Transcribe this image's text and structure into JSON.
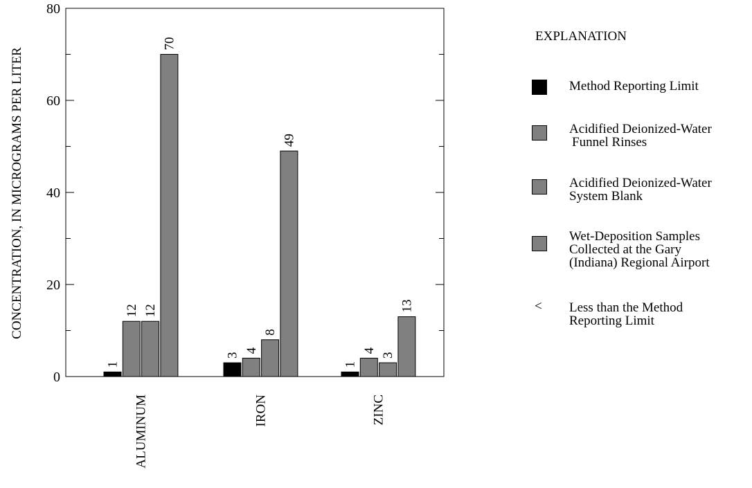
{
  "chart_data": {
    "type": "bar",
    "ylabel": "CONCENTRATION, IN MICROGRAMS PER LITER",
    "xlabel": "",
    "ylim": [
      0,
      80
    ],
    "yticks": [
      "0",
      "20",
      "40",
      "60",
      "80"
    ],
    "categories": [
      "ALUMINUM",
      "IRON",
      "ZINC"
    ],
    "series": [
      {
        "name": "Method Reporting Limit",
        "color": "#000000",
        "values": [
          1,
          3,
          1
        ],
        "labels": [
          "1",
          "3",
          "1"
        ]
      },
      {
        "name": "Acidified Deionized-Water Funnel Rinses",
        "color": "#808080",
        "values": [
          12,
          4,
          4
        ],
        "labels": [
          "12",
          "4",
          "4"
        ]
      },
      {
        "name": "Acidified Deionized-Water System Blank",
        "color": "#808080",
        "values": [
          12,
          8,
          3
        ],
        "labels": [
          "12",
          "8",
          "3"
        ]
      },
      {
        "name": "Wet-Deposition Samples Collected at the Gary (Indiana) Regional Airport",
        "color": "#808080",
        "values": [
          70,
          49,
          13
        ],
        "labels": [
          "70",
          "49",
          "13"
        ]
      }
    ],
    "grid": false,
    "legend_position": "right"
  },
  "legend": {
    "title": "EXPLANATION",
    "items": [
      {
        "swatch": "#000000",
        "lines": [
          "Method Reporting Limit"
        ]
      },
      {
        "swatch": "#808080",
        "lines": [
          "Acidified Deionized-Water",
          "Funnel Rinses"
        ]
      },
      {
        "swatch": "#808080",
        "lines": [
          "Acidified Deionized-Water",
          "System Blank"
        ]
      },
      {
        "swatch": "#808080",
        "lines": [
          "Wet-Deposition Samples",
          "Collected at the Gary",
          "(Indiana) Regional Airport"
        ]
      }
    ],
    "note": {
      "symbol": "<",
      "lines": [
        "Less than the Method",
        "Reporting Limit"
      ]
    }
  }
}
